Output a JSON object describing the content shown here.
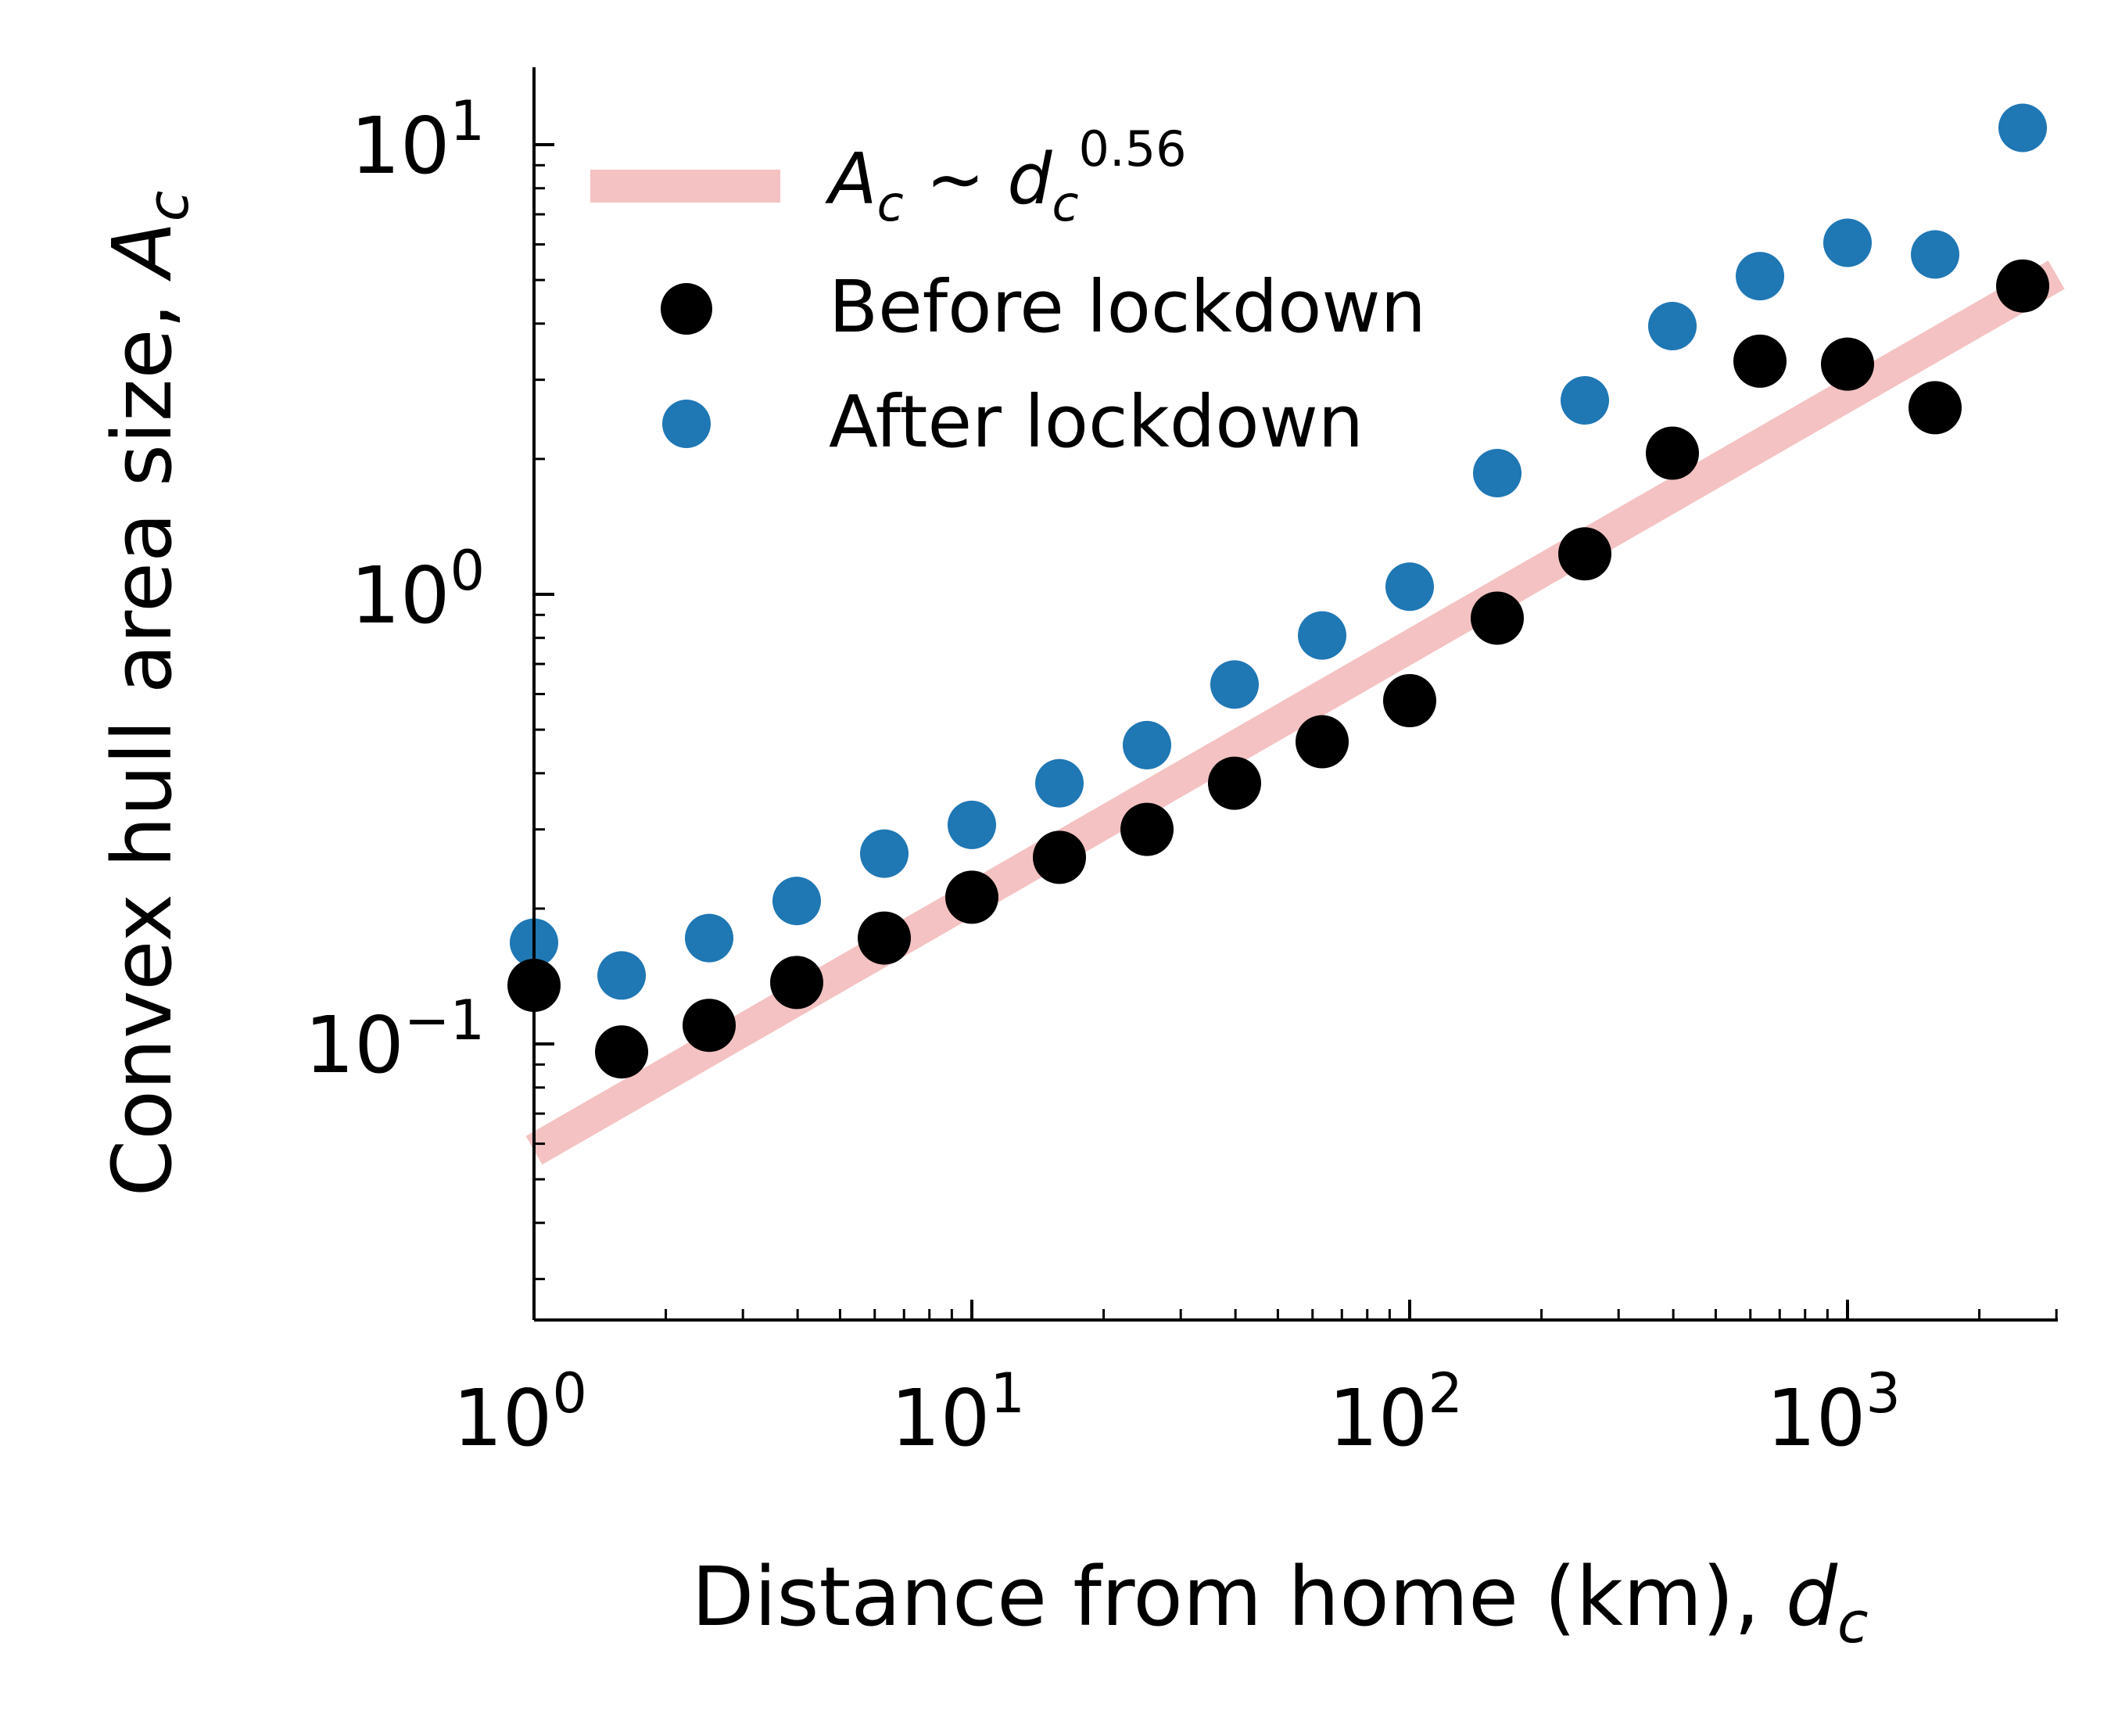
{
  "chart_data": {
    "type": "scatter",
    "xscale": "log",
    "yscale": "log",
    "xlim": [
      1,
      3000
    ],
    "ylim": [
      0.025,
      15
    ],
    "xlabel": {
      "text": "Distance from home (km), ",
      "var": "d",
      "sub": "c"
    },
    "ylabel": {
      "text": "Convex hull area size, ",
      "var": "A",
      "sub": "c"
    },
    "xticks": [
      {
        "value": 1,
        "base": "10",
        "exp": "0"
      },
      {
        "value": 10,
        "base": "10",
        "exp": "1"
      },
      {
        "value": 100,
        "base": "10",
        "exp": "2"
      },
      {
        "value": 1000,
        "base": "10",
        "exp": "3"
      }
    ],
    "yticks": [
      {
        "value": 0.1,
        "base": "10",
        "exp": "−1"
      },
      {
        "value": 1,
        "base": "10",
        "exp": "0"
      },
      {
        "value": 10,
        "base": "10",
        "exp": "1"
      }
    ],
    "fit_line": {
      "label": {
        "lhs": "A",
        "lhs_sub": "c",
        "op": " ∼ ",
        "rhs": "d",
        "rhs_sub": "c",
        "exp": "0.56"
      },
      "exponent": 0.56,
      "coefficient": 0.058,
      "x_range": [
        1,
        3000
      ],
      "color": "#f4c2c2"
    },
    "series": [
      {
        "name": "Before lockdown",
        "color": "#000000",
        "x": [
          1,
          1.585,
          2.512,
          3.981,
          6.31,
          10,
          15.85,
          25.12,
          39.81,
          63.1,
          100,
          158.5,
          251.2,
          398.1,
          631,
          1000,
          1585,
          2512
        ],
        "y": [
          0.135,
          0.096,
          0.11,
          0.137,
          0.172,
          0.212,
          0.26,
          0.3,
          0.38,
          0.47,
          0.58,
          0.885,
          1.23,
          2.06,
          3.3,
          3.25,
          2.6,
          4.85
        ]
      },
      {
        "name": "After lockdown",
        "color": "#1f77b4",
        "x": [
          1,
          1.585,
          2.512,
          3.981,
          6.31,
          10,
          15.85,
          25.12,
          39.81,
          63.1,
          100,
          158.5,
          251.2,
          398.1,
          631,
          1000,
          1585,
          2512
        ],
        "y": [
          0.168,
          0.142,
          0.172,
          0.208,
          0.265,
          0.307,
          0.38,
          0.462,
          0.63,
          0.81,
          1.04,
          1.86,
          2.7,
          3.95,
          5.1,
          6.05,
          5.7,
          10.9
        ]
      }
    ],
    "legend": {
      "position": "top-left"
    }
  }
}
